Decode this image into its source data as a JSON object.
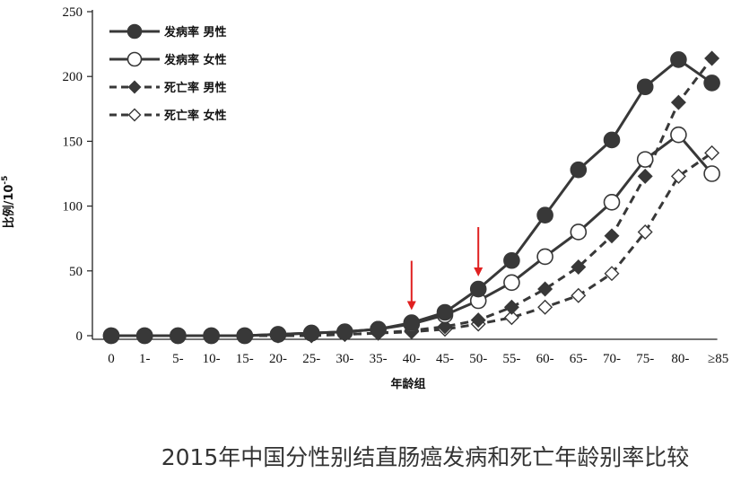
{
  "chart_data": {
    "type": "line",
    "title": "2015年中国分性别结直肠癌发病和死亡年龄别率比较",
    "xlabel": "年龄组",
    "ylabel": "比例/10",
    "ylabel_exponent": "-5",
    "ylim": [
      0,
      250
    ],
    "yticks": [
      "0",
      "50",
      "100",
      "150",
      "200",
      "250"
    ],
    "categories": [
      "0",
      "1-",
      "5-",
      "10-",
      "15-",
      "20-",
      "25-",
      "30-",
      "35-",
      "40-",
      "45-",
      "50-",
      "55-",
      "60-",
      "65-",
      "70-",
      "75-",
      "80-",
      "≥85"
    ],
    "series": [
      {
        "name": "发病率 男性",
        "line": "solid",
        "marker": "circle-filled",
        "values": [
          0,
          0,
          0,
          0,
          0,
          1,
          2,
          3,
          5,
          10,
          18,
          36,
          58,
          93,
          128,
          151,
          192,
          213,
          195
        ]
      },
      {
        "name": "发病率 女性",
        "line": "solid",
        "marker": "circle-open",
        "values": [
          0,
          0,
          0,
          0,
          0,
          1,
          2,
          3,
          5,
          9,
          16,
          27,
          41,
          61,
          80,
          103,
          136,
          155,
          125
        ]
      },
      {
        "name": "死亡率 男性",
        "line": "dashed",
        "marker": "diamond-filled",
        "values": [
          0,
          0,
          0,
          0,
          0,
          0,
          1,
          1,
          2,
          4,
          7,
          12,
          22,
          36,
          53,
          77,
          123,
          180,
          214
        ]
      },
      {
        "name": "死亡率 女性",
        "line": "dashed",
        "marker": "diamond-open",
        "values": [
          0,
          0,
          0,
          0,
          0,
          0,
          0,
          1,
          2,
          3,
          5,
          9,
          14,
          22,
          31,
          48,
          80,
          123,
          141
        ]
      }
    ],
    "arrows_at": [
      "40-",
      "50-"
    ],
    "grid": false,
    "legend_position": "top-left"
  },
  "colors": {
    "series": "#383838",
    "arrow": "#e02020",
    "axis": "#222222"
  }
}
